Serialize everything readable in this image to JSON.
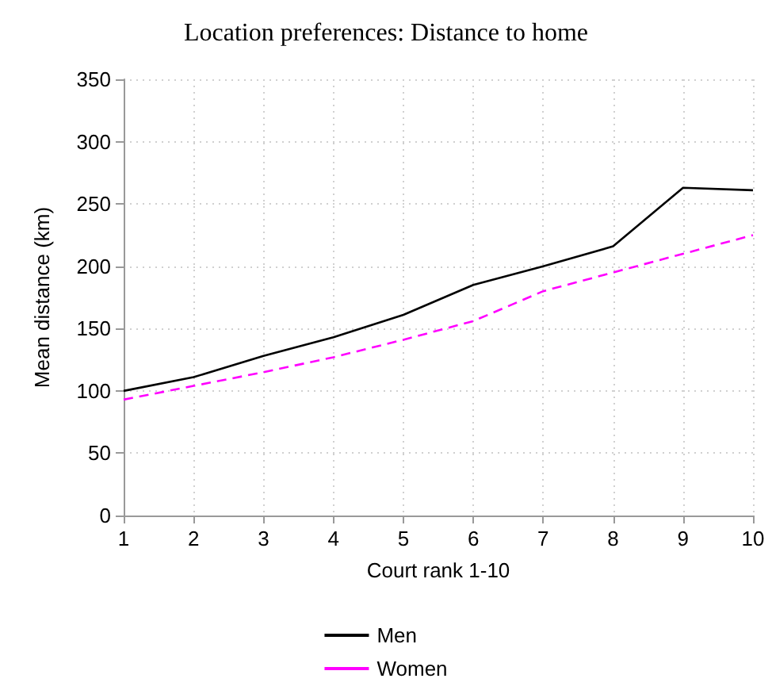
{
  "chart_data": {
    "type": "line",
    "title": "Location preferences: Distance to home",
    "xlabel": "Court rank 1-10",
    "ylabel": "Mean distance (km)",
    "x": [
      1,
      2,
      3,
      4,
      5,
      6,
      7,
      8,
      9,
      10
    ],
    "series": [
      {
        "name": "Men",
        "color": "#000000",
        "line_style": "solid",
        "values": [
          100,
          111,
          128,
          143,
          161,
          185,
          200,
          216,
          263,
          261
        ]
      },
      {
        "name": "Women",
        "color": "#ff00ff",
        "line_style": "dashed",
        "values": [
          93,
          104,
          115,
          127,
          141,
          156,
          180,
          195,
          210,
          225
        ]
      }
    ],
    "xlim": [
      1,
      10
    ],
    "xticks": [
      1,
      2,
      3,
      4,
      5,
      6,
      7,
      8,
      9,
      10
    ],
    "ylim": [
      0,
      350
    ],
    "yticks": [
      0,
      50,
      100,
      150,
      200,
      250,
      300,
      350
    ],
    "grid": true,
    "legend": "bottom",
    "marker": "none"
  }
}
